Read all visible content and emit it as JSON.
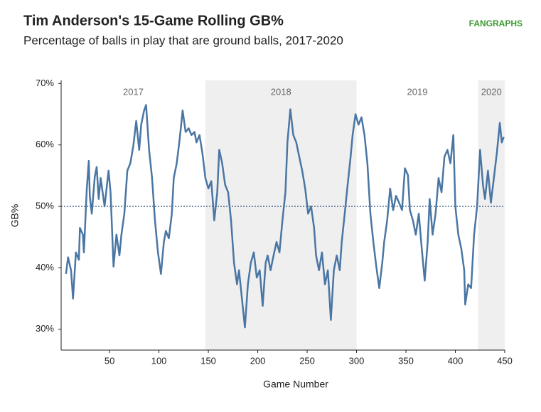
{
  "chart_data": {
    "type": "line",
    "title": "Tim Anderson's 15-Game Rolling GB%",
    "subtitle": "Percentage of balls in play that are ground balls, 2017-2020",
    "source": "FANGRAPHS",
    "x_label": "Game Number",
    "y_label": "GB%",
    "xlim": [
      1,
      450
    ],
    "ylim": [
      26.6,
      70.5
    ],
    "xticks": [
      50,
      100,
      150,
      200,
      250,
      300,
      350,
      400,
      450
    ],
    "yticks": [
      {
        "value": 30,
        "label": "30%"
      },
      {
        "value": 40,
        "label": "40%"
      },
      {
        "value": 50,
        "label": "50%"
      },
      {
        "value": 60,
        "label": "60%"
      },
      {
        "value": 70,
        "label": "70%"
      }
    ],
    "reference_line": 50,
    "seasons": [
      {
        "label": "2017",
        "start": 1,
        "end": 147,
        "shaded": false
      },
      {
        "label": "2018",
        "start": 147,
        "end": 300,
        "shaded": true
      },
      {
        "label": "2019",
        "start": 300,
        "end": 423,
        "shaded": false
      },
      {
        "label": "2020",
        "start": 423,
        "end": 450,
        "shaded": true
      }
    ],
    "shade_color": "#efefef",
    "x": [
      6,
      8,
      11,
      13,
      16,
      19,
      20,
      23,
      24,
      27,
      29,
      30,
      32,
      35,
      37,
      39,
      41,
      45,
      49,
      51,
      54,
      57,
      60,
      62,
      65,
      68,
      71,
      74,
      77,
      80,
      82,
      85,
      87,
      90,
      93,
      96,
      99,
      102,
      105,
      107,
      110,
      113,
      115,
      118,
      121,
      124,
      127,
      130,
      133,
      136,
      138,
      141,
      144,
      147,
      150,
      153,
      156,
      159,
      161,
      164,
      167,
      170,
      173,
      176,
      179,
      181,
      184,
      187,
      190,
      193,
      196,
      199,
      202,
      205,
      208,
      210,
      213,
      216,
      219,
      222,
      225,
      228,
      230,
      233,
      236,
      239,
      242,
      245,
      248,
      251,
      254,
      257,
      259,
      262,
      265,
      268,
      271,
      274,
      277,
      280,
      283,
      285,
      288,
      291,
      294,
      296,
      299,
      302,
      305,
      308,
      311,
      314,
      317,
      320,
      323,
      326,
      328,
      331,
      334,
      337,
      340,
      343,
      346,
      349,
      352,
      354,
      357,
      360,
      363,
      366,
      369,
      372,
      374,
      377,
      380,
      383,
      386,
      389,
      392,
      395,
      398,
      400,
      403,
      406,
      409,
      410,
      413,
      416,
      419,
      422,
      425,
      428,
      430,
      433,
      436,
      439,
      442,
      445,
      447,
      449
    ],
    "series": [
      {
        "name": "GB%",
        "color": "#4a76a4",
        "values": [
          39,
          41.7,
          39.6,
          35,
          42.5,
          41.3,
          46.5,
          45.4,
          42.5,
          52.9,
          57.4,
          51.7,
          48.8,
          54.8,
          56.4,
          51.2,
          54.6,
          50,
          55.8,
          52.3,
          40.2,
          45.4,
          42,
          45.4,
          48.8,
          55.8,
          57,
          59.8,
          63.9,
          59.2,
          63.3,
          65.6,
          66.5,
          59.2,
          54.6,
          47.7,
          42.5,
          39,
          44.2,
          46,
          44.8,
          48.8,
          54.6,
          57,
          61,
          65.6,
          62.1,
          62.7,
          61.6,
          62.1,
          60.4,
          61.6,
          58.7,
          54.6,
          52.9,
          54.1,
          47.7,
          52.3,
          59.2,
          57,
          53.5,
          52.3,
          47.7,
          40.8,
          37.3,
          39.6,
          35,
          30.3,
          37.3,
          40.8,
          42.5,
          38.4,
          39.6,
          33.8,
          40.8,
          42,
          39.6,
          42,
          44.2,
          42.5,
          47.7,
          52.3,
          60.4,
          65.8,
          61.6,
          60.4,
          58.1,
          55.8,
          52.9,
          48.8,
          50,
          46.5,
          42,
          39.6,
          42.5,
          37.3,
          39.6,
          31.5,
          39.6,
          42,
          39.6,
          44.2,
          48.8,
          53.5,
          58.1,
          61.6,
          65,
          63.3,
          64.5,
          61.6,
          57,
          48.8,
          44.2,
          40.2,
          36.7,
          40.8,
          44.2,
          47.7,
          52.9,
          49.4,
          51.7,
          50.6,
          49.4,
          56.2,
          55.1,
          49.4,
          47.7,
          45.4,
          48.8,
          43.1,
          37.9,
          44.2,
          51.2,
          45.4,
          48.8,
          54.6,
          52.3,
          58.1,
          59.2,
          57,
          61.6,
          50,
          45.4,
          43.1,
          39.6,
          34,
          37.3,
          36.7,
          45.4,
          50,
          59.2,
          53.5,
          51.2,
          55.8,
          50.6,
          54.6,
          58.7,
          63.6,
          60.4,
          61.3
        ]
      }
    ]
  }
}
